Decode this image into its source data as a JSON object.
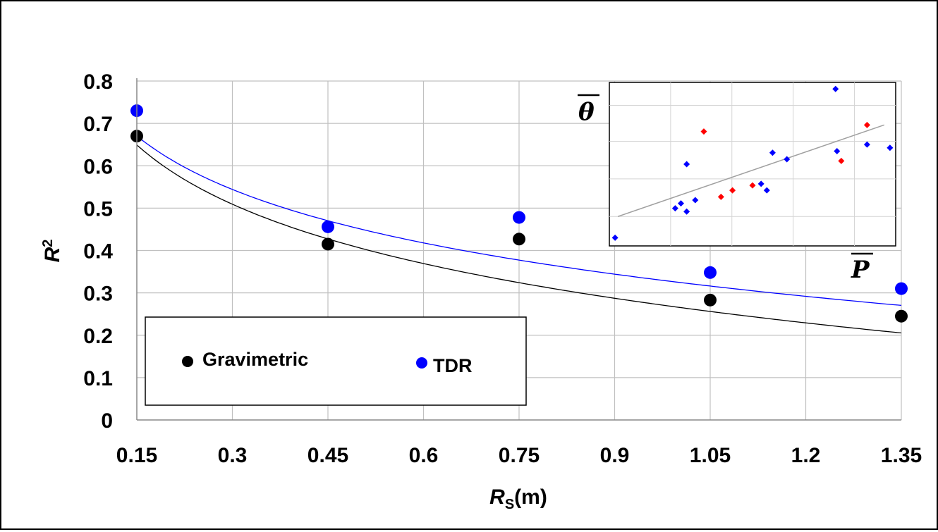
{
  "chart_data": [
    {
      "type": "scatter",
      "title": "",
      "xlabel": "R",
      "xlabel_sub": "S",
      "xlabel_unit": "(m)",
      "ylabel": "R",
      "ylabel_sup": "2",
      "xlim": [
        0.15,
        1.35
      ],
      "ylim": [
        0,
        0.8
      ],
      "x_ticks": [
        "0.15",
        "0.3",
        "0.45",
        "0.6",
        "0.75",
        "0.9",
        "1.05",
        "1.2",
        "1.35"
      ],
      "y_ticks": [
        "0",
        "0.1",
        "0.2",
        "0.3",
        "0.4",
        "0.5",
        "0.6",
        "0.7",
        "0.8"
      ],
      "grid": true,
      "legend_position": "bottom-left",
      "series": [
        {
          "name": "Gravimetric",
          "color": "#000000",
          "x": [
            0.15,
            0.45,
            0.75,
            1.05,
            1.35
          ],
          "y": [
            0.67,
            0.415,
            0.427,
            0.283,
            0.245
          ],
          "trendline": {
            "type": "logarithmic",
            "a": 0.266,
            "b": -0.202
          }
        },
        {
          "name": "TDR",
          "color": "#0000ff",
          "x": [
            0.15,
            0.45,
            0.75,
            1.05,
            1.35
          ],
          "y": [
            0.73,
            0.456,
            0.478,
            0.348,
            0.31
          ],
          "trendline": {
            "type": "logarithmic",
            "a": 0.325,
            "b": -0.182
          }
        }
      ]
    },
    {
      "type": "scatter",
      "role": "inset",
      "xlabel": "P",
      "ylabel": "θ",
      "xlim": [
        0,
        10
      ],
      "ylim": [
        0,
        10
      ],
      "grid": true,
      "series": [
        {
          "color": "#0000ff",
          "x": [
            0.2,
            2.3,
            2.5,
            2.7,
            2.7,
            3.0,
            5.3,
            5.7,
            5.5,
            6.2,
            7.9,
            7.95,
            9.0,
            9.8
          ],
          "y": [
            0.5,
            2.3,
            2.6,
            2.1,
            5.0,
            2.8,
            3.8,
            5.7,
            3.4,
            5.3,
            9.6,
            5.8,
            6.2,
            6.0
          ]
        },
        {
          "color": "#ff0000",
          "x": [
            3.3,
            3.9,
            4.3,
            5.0,
            8.1,
            9.0
          ],
          "y": [
            7.0,
            3.0,
            3.4,
            3.7,
            5.2,
            7.4
          ]
        }
      ],
      "trendline": {
        "x": [
          0.3,
          9.6
        ],
        "y": [
          1.8,
          7.4
        ],
        "color": "#a0a0a0"
      }
    }
  ]
}
